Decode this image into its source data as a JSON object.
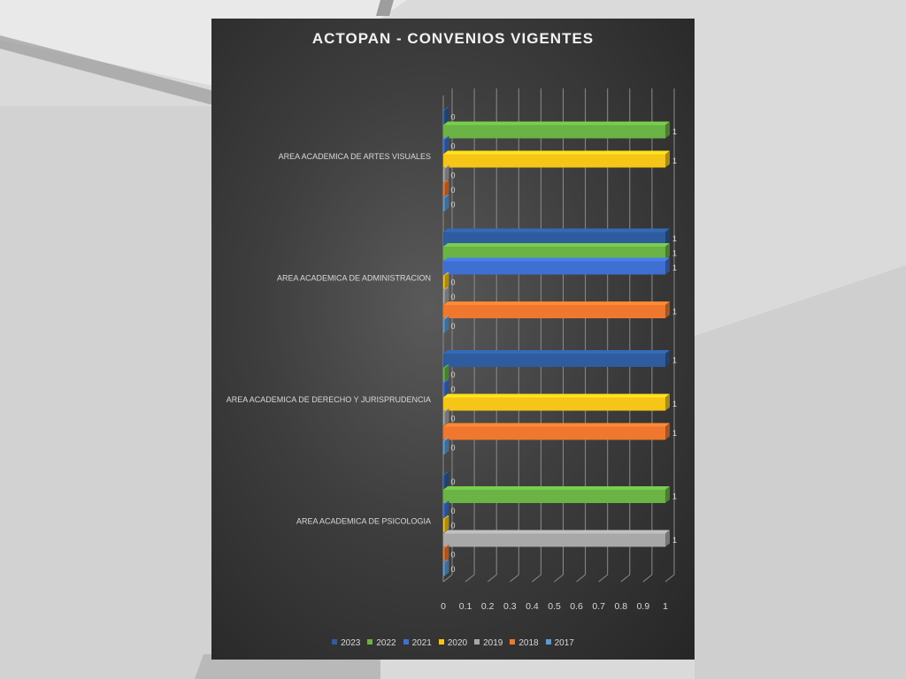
{
  "chart_data": {
    "type": "bar",
    "orientation": "horizontal",
    "title": "ACTOPAN - CONVENIOS VIGENTES",
    "categories": [
      "AREA ACADEMICA DE ARTES VISUALES",
      "AREA ACADEMICA DE ADMINISTRACION",
      "AREA ACADEMICA DE DERECHO Y JURISPRUDENCIA",
      "AREA ACADEMICA DE PSICOLOGIA"
    ],
    "series": [
      {
        "name": "2023",
        "color": "#2e5c9e",
        "values": [
          0,
          1,
          1,
          0
        ]
      },
      {
        "name": "2022",
        "color": "#6ab344",
        "values": [
          1,
          1,
          0,
          1
        ]
      },
      {
        "name": "2021",
        "color": "#3f6fd0",
        "values": [
          0,
          1,
          0,
          0
        ]
      },
      {
        "name": "2020",
        "color": "#f5c518",
        "values": [
          1,
          0,
          1,
          0
        ]
      },
      {
        "name": "2019",
        "color": "#a8a8a8",
        "values": [
          0,
          0,
          0,
          1
        ]
      },
      {
        "name": "2018",
        "color": "#f0782e",
        "values": [
          0,
          1,
          1,
          0
        ]
      },
      {
        "name": "2017",
        "color": "#5b9bd5",
        "values": [
          0,
          0,
          0,
          0
        ]
      }
    ],
    "xlim": [
      0,
      1
    ],
    "ticks": [
      "0",
      "0.1",
      "0.2",
      "0.3",
      "0.4",
      "0.5",
      "0.6",
      "0.7",
      "0.8",
      "0.9",
      "1"
    ],
    "grid": true,
    "legend_position": "bottom",
    "data_labels": true
  }
}
